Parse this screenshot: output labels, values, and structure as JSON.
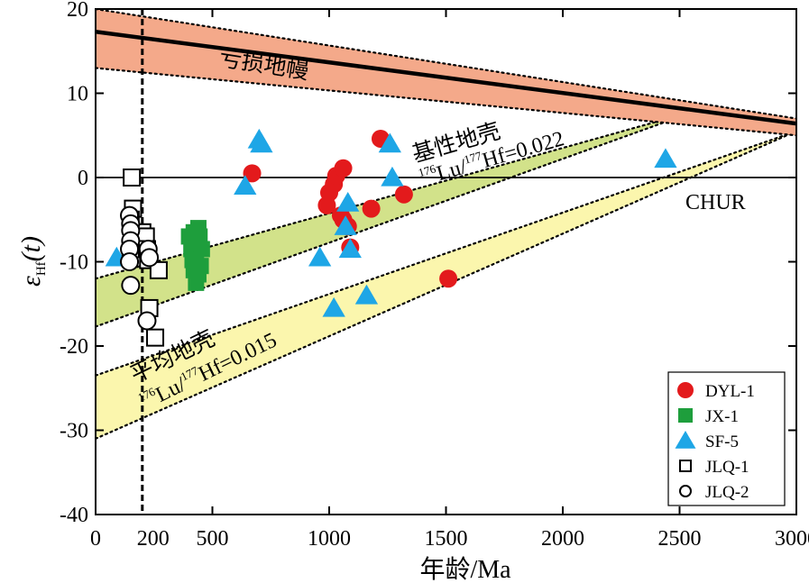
{
  "chart_data": {
    "type": "scatter",
    "xlabel": "年龄/Ma",
    "ylabel": "εHf(t)",
    "ylabel_main": "ε",
    "ylabel_sub": "Hf",
    "ylabel_paren": "(t)",
    "xlim": [
      0,
      3000
    ],
    "ylim": [
      -40,
      20
    ],
    "x_ticks": [
      0,
      500,
      1000,
      1500,
      2000,
      2500,
      3000
    ],
    "x_tick_labels": [
      "0",
      "500",
      "1000",
      "1500",
      "2000",
      "2500",
      "3000"
    ],
    "x_extra_tick": {
      "value": 200,
      "label": "200"
    },
    "y_ticks": [
      -40,
      -30,
      -20,
      -10,
      0,
      10,
      20
    ],
    "y_tick_labels": [
      "-40",
      "-30",
      "-20",
      "-10",
      "0",
      "10",
      "20"
    ],
    "reference_line_x": 200,
    "chur_label": "CHUR",
    "dm_band": {
      "label": "亏损地幔",
      "x": [
        0,
        3000
      ],
      "upper": [
        20,
        7
      ],
      "lower": [
        13,
        5
      ],
      "center": [
        17.3,
        6.4
      ],
      "color": "#f4a98a"
    },
    "mafic_band": {
      "label_cn": "基性地壳",
      "label_ratio": "176Lu/177Hf=0.022",
      "x": [
        0,
        2450
      ],
      "upper": [
        -12,
        7
      ],
      "lower": [
        -17.7,
        6.7
      ],
      "color": "#d2e28a"
    },
    "average_band": {
      "label_cn": "平均地壳",
      "label_ratio": "176Lu/177Hf=0.015",
      "x": [
        0,
        3000
      ],
      "upper": [
        -23.5,
        5.5
      ],
      "lower": [
        -31,
        5.5
      ],
      "color": "#fbf6ad"
    },
    "series": [
      {
        "name": "DYL-1",
        "marker": "circle",
        "color": "#e31a1c",
        "points": [
          [
            670,
            0.5
          ],
          [
            990,
            -3.3
          ],
          [
            1000,
            -1.8
          ],
          [
            1020,
            -0.8
          ],
          [
            1030,
            0.2
          ],
          [
            1060,
            1.1
          ],
          [
            1050,
            -4.5
          ],
          [
            1060,
            -5
          ],
          [
            1080,
            -5.8
          ],
          [
            1090,
            -8.3
          ],
          [
            1180,
            -3.7
          ],
          [
            1220,
            4.6
          ],
          [
            1320,
            -2
          ],
          [
            1510,
            -12
          ]
        ]
      },
      {
        "name": "JX-1",
        "marker": "square",
        "color": "#1e9e3c",
        "points": [
          [
            400,
            -7
          ],
          [
            410,
            -8.5
          ],
          [
            420,
            -6.5
          ],
          [
            430,
            -7.5
          ],
          [
            430,
            -9.5
          ],
          [
            440,
            -8
          ],
          [
            420,
            -11
          ],
          [
            430,
            -12.5
          ],
          [
            440,
            -11.5
          ],
          [
            450,
            -10.5
          ],
          [
            445,
            -7
          ],
          [
            455,
            -8.5
          ],
          [
            415,
            -9.8
          ],
          [
            440,
            -6
          ]
        ]
      },
      {
        "name": "SF-5",
        "marker": "triangle",
        "color": "#1ea6e6",
        "points": [
          [
            90,
            -9.5
          ],
          [
            640,
            -1
          ],
          [
            700,
            4.5
          ],
          [
            710,
            4
          ],
          [
            960,
            -9.5
          ],
          [
            1020,
            -15.5
          ],
          [
            1070,
            -5.8
          ],
          [
            1080,
            -3
          ],
          [
            1090,
            -8.5
          ],
          [
            1160,
            -14
          ],
          [
            1260,
            4
          ],
          [
            1270,
            0
          ],
          [
            2440,
            2.2
          ]
        ]
      },
      {
        "name": "JLQ-1",
        "marker": "square-open",
        "color": "#000000",
        "points": [
          [
            155,
            0
          ],
          [
            160,
            -3.7
          ],
          [
            150,
            -5
          ],
          [
            155,
            -6.8
          ],
          [
            150,
            -8.5
          ],
          [
            200,
            -6.5
          ],
          [
            215,
            -7
          ],
          [
            220,
            -8.5
          ],
          [
            225,
            -9.8
          ],
          [
            270,
            -11
          ],
          [
            230,
            -15.5
          ],
          [
            255,
            -19
          ]
        ]
      },
      {
        "name": "JLQ-2",
        "marker": "circle-open",
        "color": "#000000",
        "points": [
          [
            145,
            -4.5
          ],
          [
            150,
            -5.5
          ],
          [
            150,
            -6.3
          ],
          [
            150,
            -7.5
          ],
          [
            145,
            -8.5
          ],
          [
            145,
            -10
          ],
          [
            150,
            -12.8
          ],
          [
            225,
            -8.5
          ],
          [
            230,
            -9.5
          ],
          [
            220,
            -17
          ]
        ]
      }
    ]
  }
}
